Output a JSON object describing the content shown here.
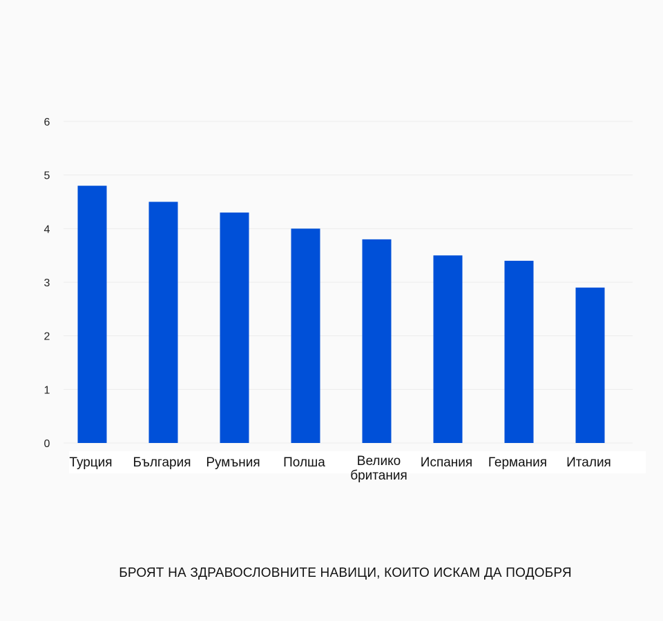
{
  "chart_data": {
    "type": "bar",
    "title": "БРОЯТ НА ЗДРАВОСЛОВНИТЕ НАВИЦИ, КОИТО ИСКАМ ДА ПОДОБРЯ",
    "xlabel": "",
    "ylabel": "",
    "categories": [
      [
        "Турция"
      ],
      [
        "България"
      ],
      [
        "Румъния"
      ],
      [
        "Полша"
      ],
      [
        "Велико",
        "британия"
      ],
      [
        "Испания"
      ],
      [
        "Германия"
      ],
      [
        "Италия"
      ]
    ],
    "values": [
      4.8,
      4.5,
      4.3,
      4.0,
      3.8,
      3.5,
      3.4,
      2.9
    ],
    "ylim": [
      0,
      6
    ],
    "yticks": [
      "0",
      "1",
      "2",
      "3",
      "4",
      "5",
      "6"
    ],
    "grid": true,
    "legend": "none",
    "colors": {
      "bar": "#0050d8",
      "grid": "#ececec",
      "background": "#fafafa"
    }
  }
}
